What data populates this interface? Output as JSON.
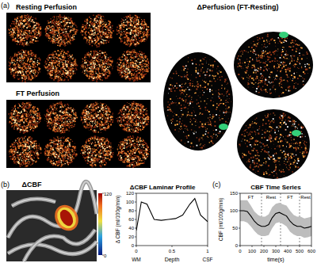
{
  "figure": {
    "panel_a": {
      "label": "(a)",
      "resting_title": "Resting Perfusion",
      "ft_title": "FT Perfusion",
      "delta_title": "ΔPerfusion (FT-Resting)"
    },
    "panel_b": {
      "label": "(b)",
      "map_title": "ΔCBF",
      "colorbar": {
        "range": [
          0,
          120
        ],
        "ticks": [
          0,
          120
        ]
      }
    },
    "panel_c": {
      "label": "(c)"
    }
  },
  "chart_data": [
    {
      "type": "line",
      "title": "ΔCBF Laminar Profile",
      "x_label": "Depth",
      "y_label": "Δ CBF (ml/100g/min)",
      "annotations": [
        "WM",
        "CSF"
      ],
      "x": [
        0,
        0.07,
        0.15,
        0.25,
        0.35,
        0.45,
        0.55,
        0.65,
        0.75,
        0.82,
        0.9,
        1.0
      ],
      "values": [
        35,
        100,
        95,
        60,
        58,
        60,
        62,
        70,
        95,
        108,
        70,
        55
      ],
      "color": "#000000",
      "xlim": [
        0,
        1
      ],
      "xticks": [
        0,
        0.5,
        1
      ],
      "ylim": [
        0,
        120
      ],
      "yticks": [
        0,
        20,
        40,
        60,
        80,
        100,
        120
      ]
    },
    {
      "type": "line",
      "title": "CBF Time Series",
      "x_label": "time(s)",
      "y_label": "CBF (ml/100g/min)",
      "blocks": [
        {
          "label": "FT",
          "start": 0,
          "end": 180
        },
        {
          "label": "Rest",
          "start": 180,
          "end": 340
        },
        {
          "label": "FT",
          "start": 340,
          "end": 500
        },
        {
          "label": "Rest",
          "start": 500,
          "end": 600
        }
      ],
      "x": [
        0,
        30,
        60,
        90,
        120,
        150,
        180,
        210,
        240,
        270,
        300,
        330,
        360,
        390,
        420,
        450,
        480,
        510,
        540,
        570,
        600
      ],
      "values": [
        100,
        100,
        98,
        85,
        70,
        60,
        55,
        55,
        60,
        80,
        92,
        95,
        90,
        85,
        70,
        60,
        55,
        55,
        50,
        52,
        55
      ],
      "error": [
        30,
        30,
        32,
        30,
        28,
        28,
        28,
        28,
        30,
        30,
        28,
        28,
        28,
        30,
        30,
        28,
        28,
        28,
        28,
        28,
        28
      ],
      "color": "#000000",
      "xlim": [
        0,
        600
      ],
      "xticks": [
        0,
        100,
        200,
        300,
        400,
        500,
        600
      ],
      "ylim": [
        0,
        150
      ],
      "yticks": [
        0,
        50,
        100,
        150
      ]
    }
  ]
}
